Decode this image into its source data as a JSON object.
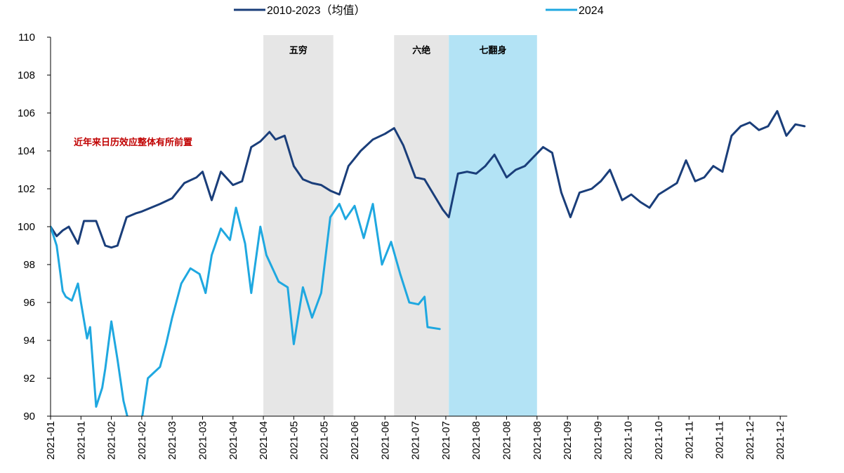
{
  "chart_data": {
    "type": "line",
    "title": "",
    "xlabel": "",
    "ylabel": "",
    "ylim": [
      90,
      110
    ],
    "y_ticks": [
      90,
      92,
      94,
      96,
      98,
      100,
      102,
      104,
      106,
      108,
      110
    ],
    "x_tick_labels": [
      "2021-01",
      "2021-01",
      "2021-02",
      "2021-02",
      "2021-03",
      "2021-03",
      "2021-04",
      "2021-04",
      "2021-05",
      "2021-05",
      "2021-06",
      "2021-06",
      "2021-07",
      "2021-07",
      "2021-08",
      "2021-08",
      "2021-08",
      "2021-09",
      "2021-09",
      "2021-10",
      "2021-10",
      "2021-11",
      "2021-11",
      "2021-12",
      "2021-12"
    ],
    "grid": false,
    "legend_position": "top",
    "bands": [
      {
        "label": "五穷",
        "x_start": 7.0,
        "x_end": 9.3,
        "color": "#e6e6e6"
      },
      {
        "label": "六绝",
        "x_start": 11.3,
        "x_end": 13.1,
        "color": "#e6e6e6"
      },
      {
        "label": "七翻身",
        "x_start": 13.1,
        "x_end": 16.0,
        "color": "#b3e3f5"
      }
    ],
    "annotation": "近年来日历效应整体有所前置",
    "series": [
      {
        "name": "2010-2023（均值）",
        "color": "#1a3e7a",
        "x": [
          0.0,
          0.2,
          0.4,
          0.6,
          0.9,
          1.1,
          1.5,
          1.8,
          2.0,
          2.2,
          2.5,
          2.8,
          3.0,
          3.3,
          3.6,
          4.0,
          4.4,
          4.8,
          5.0,
          5.3,
          5.6,
          6.0,
          6.3,
          6.6,
          6.9,
          7.2,
          7.4,
          7.7,
          8.0,
          8.3,
          8.6,
          8.9,
          9.2,
          9.5,
          9.8,
          10.2,
          10.6,
          11.0,
          11.3,
          11.6,
          12.0,
          12.3,
          12.6,
          12.9,
          13.1,
          13.4,
          13.7,
          14.0,
          14.3,
          14.6,
          15.0,
          15.3,
          15.6,
          15.9,
          16.2,
          16.5,
          16.8,
          17.1,
          17.4,
          17.8,
          18.1,
          18.4,
          18.8,
          19.1,
          19.4,
          19.7,
          20.0,
          20.3,
          20.6,
          20.9,
          21.2,
          21.5,
          21.8,
          22.1,
          22.4,
          22.7,
          23.0,
          23.3,
          23.6,
          23.9,
          24.2,
          24.5,
          24.8
        ],
        "values": [
          100.0,
          99.5,
          99.8,
          100.0,
          99.1,
          100.3,
          100.3,
          99.0,
          98.9,
          99.0,
          100.5,
          100.7,
          100.8,
          101.0,
          101.2,
          101.5,
          102.3,
          102.6,
          102.9,
          101.4,
          102.9,
          102.2,
          102.4,
          104.2,
          104.5,
          105.0,
          104.6,
          104.8,
          103.2,
          102.5,
          102.3,
          102.2,
          101.9,
          101.7,
          103.2,
          104.0,
          104.6,
          104.9,
          105.2,
          104.3,
          102.6,
          102.5,
          101.7,
          100.9,
          100.5,
          102.8,
          102.9,
          102.8,
          103.2,
          103.8,
          102.6,
          103.0,
          103.2,
          103.7,
          104.2,
          103.9,
          101.8,
          100.5,
          101.8,
          102.0,
          102.4,
          103.0,
          101.4,
          101.7,
          101.3,
          101.0,
          101.7,
          102.0,
          102.3,
          103.5,
          102.4,
          102.6,
          103.2,
          102.9,
          104.8,
          105.3,
          105.5,
          105.1,
          105.3,
          106.1,
          104.8,
          105.4,
          105.3
        ]
      },
      {
        "name": "2024",
        "color": "#1fa8e0",
        "x": [
          0.0,
          0.2,
          0.4,
          0.5,
          0.7,
          0.9,
          1.0,
          1.2,
          1.3,
          1.5,
          1.7,
          1.8,
          2.0,
          2.2,
          2.4,
          2.6,
          2.8,
          3.0,
          3.2,
          3.4,
          3.6,
          3.8,
          4.0,
          4.3,
          4.6,
          4.9,
          5.1,
          5.3,
          5.6,
          5.9,
          6.1,
          6.4,
          6.6,
          6.9,
          7.1,
          7.3,
          7.5,
          7.8,
          8.0,
          8.3,
          8.6,
          8.9,
          9.2,
          9.5,
          9.7,
          10.0,
          10.3,
          10.6,
          10.9,
          11.2,
          11.5,
          11.8,
          12.1,
          12.3,
          12.4,
          12.8
        ],
        "values": [
          100.0,
          99.0,
          96.6,
          96.3,
          96.1,
          97.0,
          96.0,
          94.1,
          94.7,
          90.5,
          91.5,
          92.5,
          95.0,
          93.0,
          90.8,
          89.5,
          89.3,
          89.8,
          92.0,
          92.3,
          92.6,
          93.8,
          95.2,
          97.0,
          97.8,
          97.5,
          96.5,
          98.5,
          99.9,
          99.3,
          101.0,
          99.1,
          96.5,
          100.0,
          98.5,
          97.8,
          97.1,
          96.8,
          93.8,
          96.8,
          95.2,
          96.5,
          100.5,
          101.2,
          100.4,
          101.1,
          99.4,
          101.2,
          98.0,
          99.2,
          97.5,
          96.0,
          95.9,
          96.3,
          94.7,
          94.6
        ]
      }
    ]
  }
}
